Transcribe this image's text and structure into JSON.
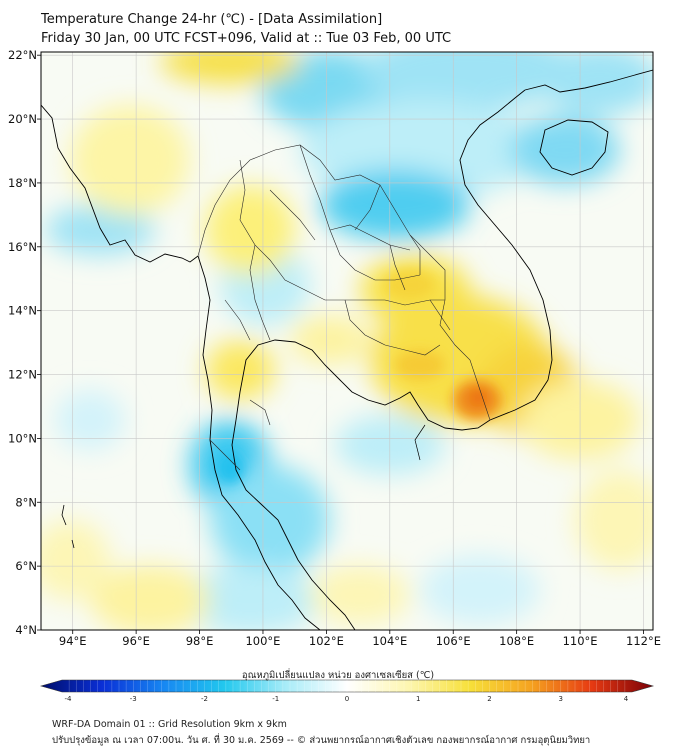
{
  "header": {
    "title": "Temperature Change 24-hr (℃) - [Data Assimilation]",
    "subtitle": "Friday 30 Jan, 00 UTC FCST+096, Valid at :: Tue 03 Feb, 00 UTC"
  },
  "map": {
    "lon_range": [
      93,
      112.3
    ],
    "lat_range": [
      4,
      22.1
    ],
    "lon_ticks": [
      "94°E",
      "96°E",
      "98°E",
      "100°E",
      "102°E",
      "104°E",
      "106°E",
      "108°E",
      "110°E",
      "112°E"
    ],
    "lat_ticks": [
      "4°N",
      "6°N",
      "8°N",
      "10°N",
      "12°N",
      "14°N",
      "16°N",
      "18°N",
      "20°N",
      "22°N"
    ],
    "grid": true,
    "colors": {
      "cool_strong": "#1ec3ec",
      "cool_light": "#bdeef8",
      "neutral": "#f8fbf4",
      "warm_light": "#fdf5a6",
      "warm": "#f6df3a",
      "warm_strong": "#f08a1c",
      "coast": "#000000",
      "border": "#2a2a2a",
      "grid": "#c8c8c8"
    }
  },
  "colorbar": {
    "label": "อุณหภูมิเปลี่ยนแปลง หน่วย องศาเซลเซียส (℃)",
    "ticks": [
      "-4",
      "-3",
      "-2",
      "-1",
      "0",
      "1",
      "2",
      "3",
      "4"
    ],
    "range": [
      -4,
      4
    ],
    "stops": [
      "#000e6b",
      "#0a2fd6",
      "#1787f2",
      "#22c8ee",
      "#a8ecf8",
      "#ffffff",
      "#fdf6b0",
      "#f7e03a",
      "#f5a320",
      "#e63a12",
      "#7a0007"
    ]
  },
  "footer": {
    "line1": "WRF-DA Domain 01 :: Grid Resolution 9km x 9km",
    "line2": "ปรับปรุงข้อมูล ณ เวลา 07:00น. วัน ศ. ที่ 30 ม.ค. 2569 -- © ส่วนพยากรณ์อากาศเชิงตัวเลข กองพยากรณ์อากาศ กรมอุตุนิยมวิทยา"
  }
}
